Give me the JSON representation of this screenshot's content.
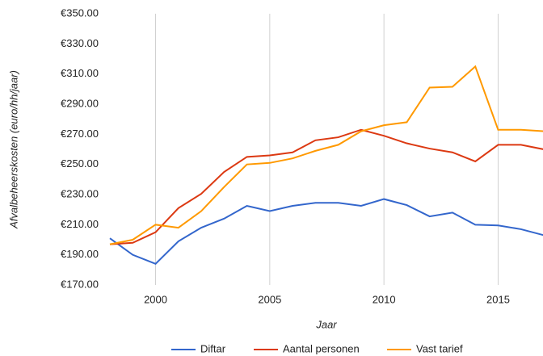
{
  "chart_data": {
    "type": "line",
    "x": [
      1998,
      1999,
      2000,
      2001,
      2002,
      2003,
      2004,
      2005,
      2006,
      2007,
      2008,
      2009,
      2010,
      2011,
      2012,
      2013,
      2014,
      2015,
      2016,
      2017
    ],
    "series": [
      {
        "name": "Diftar",
        "color": "#3366cc",
        "values": [
          201,
          190,
          184,
          199,
          208,
          214,
          222.5,
          219,
          222.5,
          224.5,
          224.5,
          222.5,
          227,
          223,
          215.5,
          218,
          210,
          209.5,
          207,
          203
        ]
      },
      {
        "name": "Aantal personen",
        "color": "#dc3912",
        "values": [
          197,
          198,
          205,
          221,
          230.5,
          245,
          255,
          256,
          258,
          266,
          268,
          273,
          269,
          264,
          260.5,
          258,
          252,
          263,
          263,
          260
        ]
      },
      {
        "name": "Vast tarief",
        "color": "#ff9900",
        "values": [
          197,
          200,
          210,
          208,
          219,
          235,
          250,
          251,
          254,
          259,
          263,
          272,
          276,
          278,
          301,
          301.5,
          315,
          273,
          273,
          272
        ]
      }
    ],
    "xlabel": "Jaar",
    "ylabel": "Afvalbeheerskosten (euro/hh/jaar)",
    "xlim": [
      1998,
      2017
    ],
    "xticks": [
      2000,
      2005,
      2010,
      2015
    ],
    "ylim": [
      170,
      350
    ],
    "yticks": [
      {
        "value": 170,
        "label": "€170.00"
      },
      {
        "value": 190,
        "label": "€190.00"
      },
      {
        "value": 210,
        "label": "€210.00"
      },
      {
        "value": 230,
        "label": "€230.00"
      },
      {
        "value": 250,
        "label": "€250.00"
      },
      {
        "value": 270,
        "label": "€270.00"
      },
      {
        "value": 290,
        "label": "€290.00"
      },
      {
        "value": 310,
        "label": "€310.00"
      },
      {
        "value": 330,
        "label": "€330.00"
      },
      {
        "value": 350,
        "label": "€350.00"
      }
    ],
    "grid": true,
    "legend": "bottom"
  }
}
